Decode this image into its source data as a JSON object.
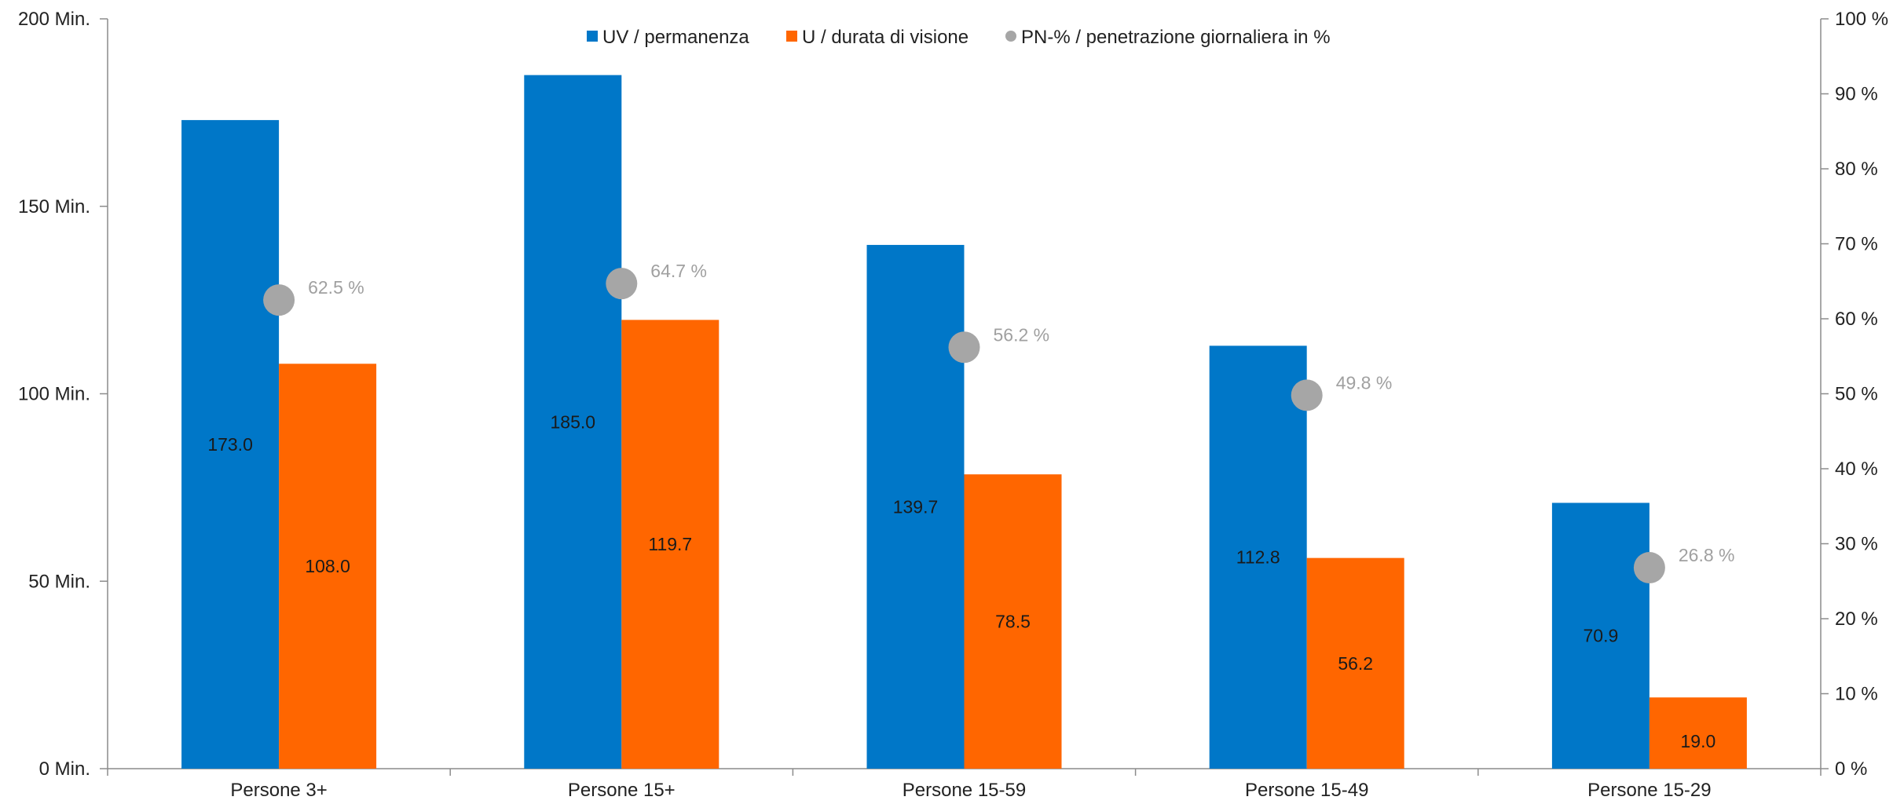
{
  "chart_data": {
    "type": "bar",
    "categories": [
      "Persone 3+",
      "Persone 15+",
      "Persone 15-59",
      "Persone 15-49",
      "Persone 15-29"
    ],
    "series": [
      {
        "name": "UV / permanenza",
        "values": [
          173.0,
          185.0,
          139.7,
          112.8,
          70.9
        ],
        "labels": [
          "173.0",
          "185.0",
          "139.7",
          "112.8",
          "70.9"
        ],
        "color": "#0077c8",
        "axis": "left",
        "kind": "bar"
      },
      {
        "name": "U / durata di visione",
        "values": [
          108.0,
          119.7,
          78.5,
          56.2,
          19.0
        ],
        "labels": [
          "108.0",
          "119.7",
          "78.5",
          "56.2",
          "19.0"
        ],
        "color": "#ff6600",
        "axis": "left",
        "kind": "bar"
      },
      {
        "name": "PN-% / penetrazione giornaliera in %",
        "values": [
          62.5,
          64.7,
          56.2,
          49.8,
          26.8
        ],
        "labels": [
          "62.5 %",
          "64.7 %",
          "56.2 %",
          "49.8 %",
          "26.8 %"
        ],
        "color": "#a6a6a6",
        "axis": "right",
        "kind": "point"
      }
    ],
    "y_left": {
      "ylim": [
        0,
        200
      ],
      "ticks": [
        0,
        50,
        100,
        150,
        200
      ],
      "tick_labels": [
        "0 Min.",
        "50 Min.",
        "100 Min.",
        "150 Min.",
        "200 Min."
      ]
    },
    "y_right": {
      "ylim": [
        0,
        100
      ],
      "ticks": [
        0,
        10,
        20,
        30,
        40,
        50,
        60,
        70,
        80,
        90,
        100
      ],
      "tick_labels": [
        "0 %",
        "10 %",
        "20 %",
        "30 %",
        "40 %",
        "50 %",
        "60 %",
        "70 %",
        "80 %",
        "90 %",
        "100 %"
      ]
    },
    "legend": "top-center",
    "grid": false,
    "title": "",
    "xlabel": "",
    "ylabel": ""
  }
}
